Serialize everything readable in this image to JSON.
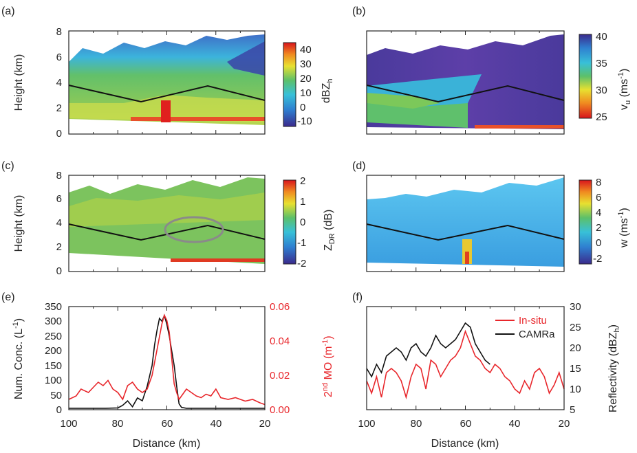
{
  "colors": {
    "axis": "#222222",
    "red_series": "#e8262b",
    "black_series": "#111111",
    "flight_track": "#111111",
    "circle": "#8a8a8a"
  },
  "axes_common": {
    "xlabel": "Distance (km)",
    "ylabel_height": "Height (km)",
    "x_ticks": [
      "100",
      "80",
      "60",
      "40",
      "20"
    ],
    "y_ticks_height": [
      "0",
      "2",
      "4",
      "6",
      "8"
    ]
  },
  "panels": {
    "a": {
      "letter": "(a)",
      "cbar_label": "dBZ",
      "cbar_sub": "h",
      "cbar_ticks": [
        "40",
        "30",
        "20",
        "10",
        "0",
        "-10"
      ]
    },
    "b": {
      "letter": "(b)",
      "cbar_label": "v",
      "cbar_sub": "u",
      "cbar_unit": " (ms",
      "cbar_sup": "-1",
      "cbar_close": ")",
      "cbar_ticks": [
        "40",
        "35",
        "30",
        "25"
      ]
    },
    "c": {
      "letter": "(c)",
      "cbar_label": "Z",
      "cbar_sub": "DR",
      "cbar_unit": " (dB)",
      "cbar_ticks": [
        "2",
        "1",
        "0",
        "-1",
        "-2"
      ]
    },
    "d": {
      "letter": "(d)",
      "cbar_label": "w (ms",
      "cbar_sup": "-1",
      "cbar_close": ")",
      "cbar_ticks": [
        "8",
        "6",
        "4",
        "2",
        "0",
        "-2"
      ]
    },
    "e": {
      "letter": "(e)",
      "ylabel_left": "Num. Conc. (L",
      "ylabel_left_sup": "-1",
      "ylabel_left_close": ")",
      "y_ticks_left": [
        "0",
        "50",
        "100",
        "150",
        "200",
        "250",
        "300",
        "350"
      ],
      "ylabel_right_pre": "2",
      "ylabel_right_sup": "nd",
      "ylabel_right_mid": " MO (m",
      "ylabel_right_sup2": "-1",
      "ylabel_right_close": ")",
      "y_ticks_right": [
        "0.00",
        "0.02",
        "0.04",
        "0.06"
      ]
    },
    "f": {
      "letter": "(f)",
      "ylabel_right": "Reflectivity (dBZ",
      "ylabel_right_sub": "h",
      "ylabel_right_close": ")",
      "y_ticks_right": [
        "5",
        "10",
        "15",
        "20",
        "25",
        "30"
      ],
      "legend": [
        "In-situ",
        "CAMRa"
      ]
    }
  },
  "chart_data": [
    {
      "panel": "a",
      "type": "heatmap",
      "variable": "dBZh",
      "xlabel": "",
      "ylabel": "Height (km)",
      "xlim": [
        100,
        20
      ],
      "ylim": [
        0,
        8
      ],
      "colorbar_range": [
        -15,
        45
      ],
      "flight_track": {
        "x": [
          100,
          70,
          44,
          20
        ],
        "y": [
          3.8,
          2.5,
          3.7,
          2.6
        ]
      }
    },
    {
      "panel": "b",
      "type": "heatmap",
      "variable": "vu (ms-1)",
      "xlim": [
        100,
        20
      ],
      "ylim": [
        0,
        8
      ],
      "colorbar_range": [
        25,
        40
      ],
      "flight_track": {
        "x": [
          100,
          70,
          44,
          20
        ],
        "y": [
          3.8,
          2.5,
          3.7,
          2.6
        ]
      }
    },
    {
      "panel": "c",
      "type": "heatmap",
      "variable": "ZDR (dB)",
      "xlim": [
        100,
        20
      ],
      "ylim": [
        0,
        8
      ],
      "colorbar_range": [
        -2,
        2
      ],
      "flight_track": {
        "x": [
          100,
          70,
          44,
          20
        ],
        "y": [
          3.8,
          2.5,
          3.7,
          2.6
        ]
      }
    },
    {
      "panel": "d",
      "type": "heatmap",
      "variable": "w (ms-1)",
      "xlim": [
        100,
        20
      ],
      "ylim": [
        0,
        8
      ],
      "colorbar_range": [
        -3,
        8
      ],
      "flight_track": {
        "x": [
          100,
          70,
          44,
          20
        ],
        "y": [
          3.8,
          2.5,
          3.7,
          2.6
        ]
      }
    },
    {
      "panel": "e",
      "type": "line",
      "xlabel": "Distance (km)",
      "xlim": [
        100,
        20
      ],
      "ylim_left": [
        0,
        350
      ],
      "ylim_right": [
        0,
        0.06
      ],
      "series": [
        {
          "name": "Num. Conc.",
          "axis": "left",
          "color": "#111111",
          "x": [
            100,
            95,
            90,
            85,
            80,
            78,
            76,
            74,
            72,
            70,
            68,
            66,
            65,
            64,
            63,
            62,
            61,
            60,
            59,
            58,
            57,
            56,
            55,
            54,
            52,
            50,
            45,
            40,
            35,
            30,
            25,
            20
          ],
          "y": [
            5,
            5,
            5,
            5,
            6,
            15,
            30,
            10,
            40,
            30,
            80,
            150,
            220,
            270,
            310,
            300,
            320,
            290,
            250,
            200,
            150,
            80,
            20,
            8,
            5,
            5,
            5,
            5,
            5,
            5,
            5,
            5
          ]
        },
        {
          "name": "2nd MO",
          "axis": "right",
          "color": "#e8262b",
          "x": [
            100,
            97,
            95,
            92,
            90,
            88,
            86,
            84,
            82,
            80,
            78,
            76,
            74,
            72,
            70,
            68,
            66,
            64,
            62,
            61,
            60,
            59,
            58,
            57,
            56,
            55,
            54,
            52,
            50,
            48,
            46,
            44,
            42,
            40,
            38,
            35,
            32,
            30,
            28,
            25,
            22,
            20
          ],
          "y": [
            0.006,
            0.008,
            0.012,
            0.01,
            0.013,
            0.016,
            0.014,
            0.017,
            0.012,
            0.01,
            0.006,
            0.014,
            0.016,
            0.012,
            0.01,
            0.012,
            0.02,
            0.035,
            0.05,
            0.055,
            0.052,
            0.045,
            0.03,
            0.015,
            0.01,
            0.006,
            0.008,
            0.012,
            0.01,
            0.008,
            0.007,
            0.009,
            0.008,
            0.012,
            0.007,
            0.006,
            0.007,
            0.006,
            0.005,
            0.006,
            0.004,
            0.003
          ]
        }
      ]
    },
    {
      "panel": "f",
      "type": "line",
      "xlabel": "Distance (km)",
      "ylabel": "Reflectivity (dBZh)",
      "xlim": [
        100,
        20
      ],
      "ylim": [
        5,
        30
      ],
      "series": [
        {
          "name": "In-situ",
          "color": "#e8262b",
          "x": [
            100,
            98,
            96,
            94,
            92,
            90,
            88,
            86,
            84,
            82,
            80,
            78,
            76,
            74,
            72,
            70,
            68,
            66,
            64,
            62,
            60,
            58,
            56,
            54,
            52,
            50,
            48,
            46,
            44,
            42,
            40,
            38,
            36,
            34,
            32,
            30,
            28,
            26,
            24,
            22,
            20
          ],
          "y": [
            12,
            9,
            13,
            8,
            14,
            15,
            14,
            12,
            8,
            13,
            16,
            15,
            10,
            17,
            16,
            13,
            15,
            17,
            18,
            20,
            24,
            21,
            18,
            17,
            15,
            14,
            16,
            15,
            13,
            12,
            10,
            9,
            12,
            10,
            14,
            15,
            13,
            9,
            11,
            14,
            10
          ]
        },
        {
          "name": "CAMRa",
          "color": "#111111",
          "x": [
            100,
            98,
            96,
            94,
            92,
            90,
            88,
            86,
            84,
            82,
            80,
            78,
            76,
            74,
            72,
            70,
            68,
            66,
            64,
            62,
            60,
            58,
            56,
            54,
            52,
            50
          ],
          "y": [
            15,
            13,
            16,
            14,
            18,
            19,
            20,
            19,
            17,
            20,
            21,
            19,
            18,
            20,
            23,
            21,
            20,
            21,
            22,
            24,
            26,
            25,
            21,
            19,
            17,
            16
          ]
        }
      ]
    }
  ]
}
